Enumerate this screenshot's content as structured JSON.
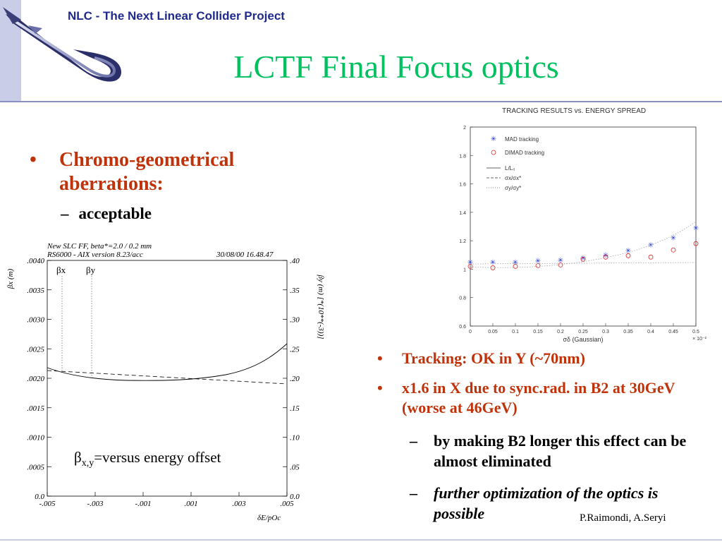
{
  "header": {
    "project_title": "NLC - The Next Linear Collider Project",
    "slide_title": "LCTF   Final Focus optics"
  },
  "left": {
    "bullet1": "Chromo-geometrical aberrations:",
    "bullet1_sub": "acceptable"
  },
  "beta_plot": {
    "info_line1": "New SLC FF, beta*=2.0 / 0.2 mm",
    "info_line2": "RS6000 - AIX version 8.23/acc",
    "info_date": "30/08/00  16.48.47",
    "left_axis_label": "βx (m)",
    "right_axis_label": "βy (m)   [*(10**(-3))]",
    "x_axis_label": "δE/pOc",
    "curve_label_x": "βx",
    "curve_label_y": "βy",
    "caption_beta": "β",
    "caption_sub": "x,y",
    "caption_text": "=versus energy offset",
    "left_ticks": [
      ".0040",
      ".0035",
      ".0030",
      ".0025",
      ".0020",
      ".0015",
      ".0010",
      ".0005",
      "0.0"
    ],
    "right_ticks": [
      ".40",
      ".35",
      ".30",
      ".25",
      ".20",
      ".15",
      ".10",
      ".05",
      "0.0"
    ],
    "x_ticks": [
      "-.005",
      "-.003",
      "-.001",
      ".001",
      ".003",
      ".005"
    ]
  },
  "chart_data": {
    "type": "scatter",
    "title": "TRACKING RESULTS vs. ENERGY SPREAD",
    "xlabel": "σδ (Gaussian)",
    "x_multiplier": "× 10⁻²",
    "xlim": [
      0,
      0.5
    ],
    "ylim": [
      0.6,
      2
    ],
    "x_ticks": [
      "0",
      "0.05",
      "0.1",
      "0.15",
      "0.2",
      "0.25",
      "0.3",
      "0.35",
      "0.4",
      "0.45",
      "0.5"
    ],
    "y_ticks": [
      "0.6",
      "0.8",
      "1",
      "1.2",
      "1.4",
      "1.6",
      "1.8",
      "2"
    ],
    "legend": {
      "mad": "MAD tracking",
      "dimad": "DIMAD tracking",
      "l_ratio": "L/L₀",
      "sx_ratio": "σx/σx*",
      "sy_ratio": "σy/σy*"
    },
    "series": [
      {
        "name": "MAD tracking",
        "x": [
          0.0,
          0.05,
          0.1,
          0.15,
          0.2,
          0.25,
          0.3,
          0.35,
          0.4,
          0.45,
          0.5
        ],
        "values": [
          1.05,
          1.05,
          1.05,
          1.06,
          1.065,
          1.08,
          1.1,
          1.13,
          1.17,
          1.22,
          1.29
        ]
      },
      {
        "name": "DIMAD tracking",
        "x": [
          0.0,
          0.05,
          0.1,
          0.15,
          0.2,
          0.25,
          0.3,
          0.35,
          0.4,
          0.45,
          0.5
        ],
        "values": [
          1.02,
          1.01,
          1.02,
          1.025,
          1.03,
          1.07,
          1.085,
          1.095,
          1.085,
          1.135,
          1.18
        ]
      }
    ],
    "colors": {
      "mad": "#2233cc",
      "dimad": "#dd2222"
    }
  },
  "right": {
    "bullet1": "Tracking: OK in Y (~70nm)",
    "bullet2": "x1.6 in X due to sync.rad. in B2 at 30GeV (worse at 46GeV)",
    "sub1": "by making B2 longer this effect can be almost eliminated",
    "sub2": "further optimization of the optics is possible",
    "credit": "P.Raimondi, A.Seryi"
  }
}
